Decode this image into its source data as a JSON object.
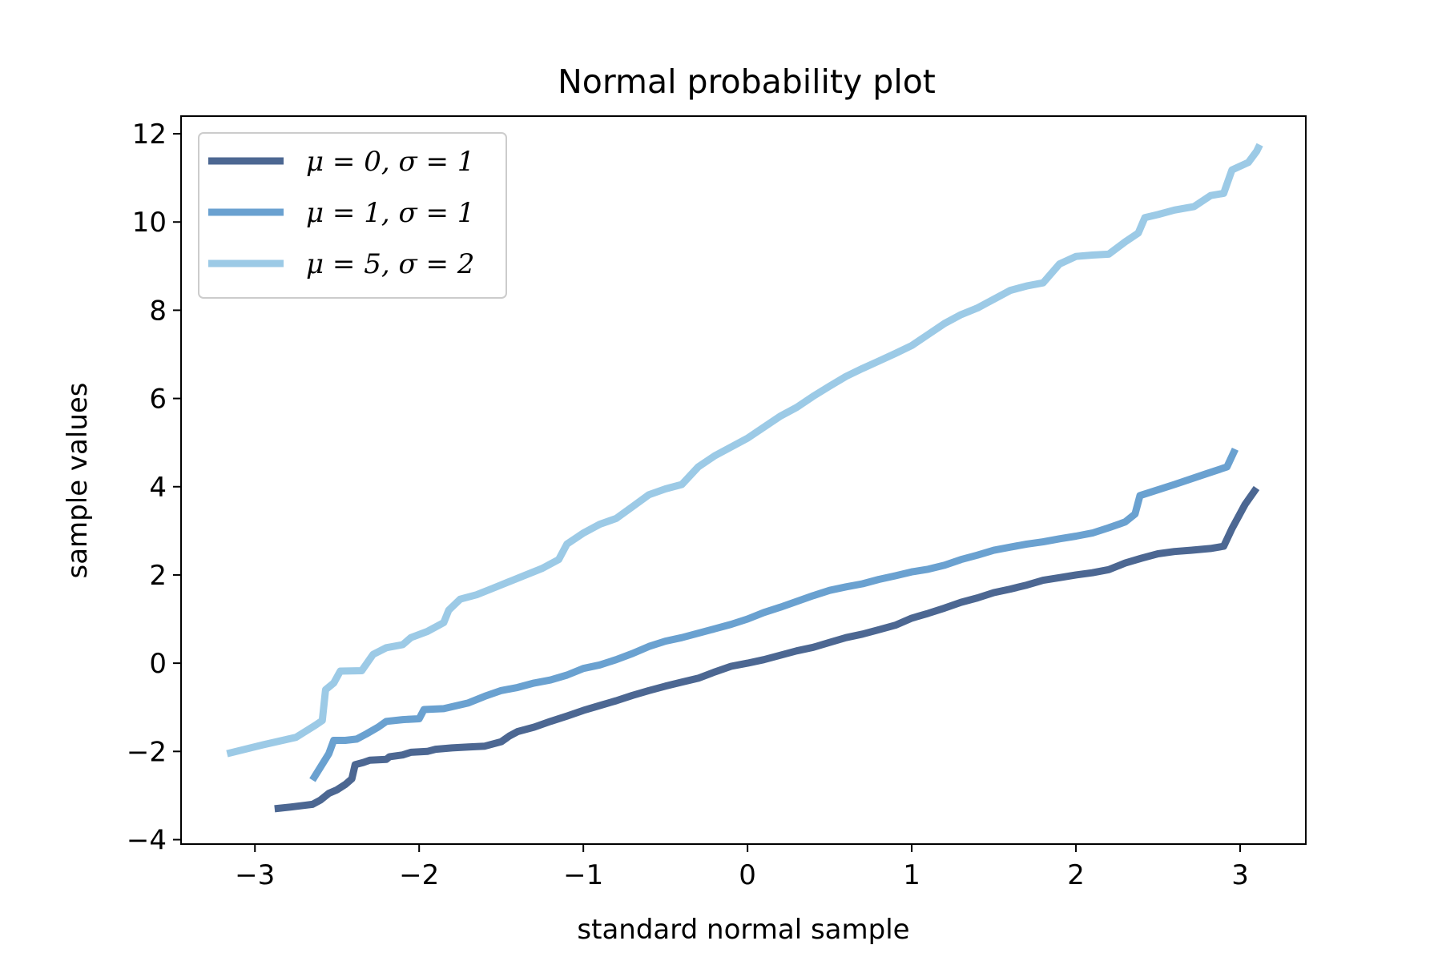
{
  "chart_data": {
    "type": "line",
    "title": "Normal probability plot",
    "xlabel": "standard normal sample",
    "ylabel": "sample values",
    "xlim": [
      -3.45,
      3.4
    ],
    "ylim": [
      -4.1,
      12.4
    ],
    "xticks": [
      -3,
      -2,
      -1,
      0,
      1,
      2,
      3
    ],
    "xtick_labels": [
      "−3",
      "−2",
      "−1",
      "0",
      "1",
      "2",
      "3"
    ],
    "yticks": [
      -4,
      -2,
      0,
      2,
      4,
      6,
      8,
      10,
      12
    ],
    "ytick_labels": [
      "−4",
      "−2",
      "0",
      "2",
      "4",
      "6",
      "8",
      "10",
      "12"
    ],
    "grid": false,
    "legend": "upper-left",
    "series": [
      {
        "name": "μ = 0, σ = 1",
        "color": "#4c6792",
        "points": [
          [
            -2.88,
            -3.3
          ],
          [
            -2.78,
            -3.26
          ],
          [
            -2.65,
            -3.2
          ],
          [
            -2.6,
            -3.1
          ],
          [
            -2.55,
            -2.95
          ],
          [
            -2.5,
            -2.87
          ],
          [
            -2.45,
            -2.75
          ],
          [
            -2.41,
            -2.62
          ],
          [
            -2.39,
            -2.3
          ],
          [
            -2.34,
            -2.25
          ],
          [
            -2.3,
            -2.2
          ],
          [
            -2.2,
            -2.18
          ],
          [
            -2.18,
            -2.12
          ],
          [
            -2.1,
            -2.08
          ],
          [
            -2.05,
            -2.02
          ],
          [
            -1.95,
            -2.0
          ],
          [
            -1.9,
            -1.95
          ],
          [
            -1.8,
            -1.92
          ],
          [
            -1.7,
            -1.9
          ],
          [
            -1.6,
            -1.88
          ],
          [
            -1.5,
            -1.78
          ],
          [
            -1.45,
            -1.65
          ],
          [
            -1.4,
            -1.55
          ],
          [
            -1.3,
            -1.45
          ],
          [
            -1.2,
            -1.32
          ],
          [
            -1.1,
            -1.2
          ],
          [
            -1.0,
            -1.07
          ],
          [
            -0.9,
            -0.96
          ],
          [
            -0.8,
            -0.85
          ],
          [
            -0.7,
            -0.73
          ],
          [
            -0.6,
            -0.62
          ],
          [
            -0.5,
            -0.52
          ],
          [
            -0.4,
            -0.43
          ],
          [
            -0.3,
            -0.34
          ],
          [
            -0.2,
            -0.2
          ],
          [
            -0.1,
            -0.07
          ],
          [
            0.0,
            0.0
          ],
          [
            0.1,
            0.08
          ],
          [
            0.2,
            0.18
          ],
          [
            0.3,
            0.28
          ],
          [
            0.4,
            0.36
          ],
          [
            0.5,
            0.47
          ],
          [
            0.6,
            0.58
          ],
          [
            0.7,
            0.66
          ],
          [
            0.8,
            0.76
          ],
          [
            0.9,
            0.86
          ],
          [
            1.0,
            1.02
          ],
          [
            1.1,
            1.13
          ],
          [
            1.2,
            1.25
          ],
          [
            1.3,
            1.38
          ],
          [
            1.4,
            1.48
          ],
          [
            1.5,
            1.6
          ],
          [
            1.6,
            1.68
          ],
          [
            1.7,
            1.77
          ],
          [
            1.8,
            1.88
          ],
          [
            1.9,
            1.94
          ],
          [
            2.0,
            2.0
          ],
          [
            2.1,
            2.05
          ],
          [
            2.2,
            2.12
          ],
          [
            2.3,
            2.27
          ],
          [
            2.4,
            2.38
          ],
          [
            2.5,
            2.48
          ],
          [
            2.6,
            2.53
          ],
          [
            2.7,
            2.56
          ],
          [
            2.82,
            2.6
          ],
          [
            2.9,
            2.65
          ],
          [
            2.95,
            3.05
          ],
          [
            3.03,
            3.6
          ],
          [
            3.1,
            3.97
          ]
        ]
      },
      {
        "name": "μ = 1, σ = 1",
        "color": "#6aa1d0",
        "points": [
          [
            -2.65,
            -2.65
          ],
          [
            -2.55,
            -2.05
          ],
          [
            -2.52,
            -1.75
          ],
          [
            -2.45,
            -1.75
          ],
          [
            -2.38,
            -1.72
          ],
          [
            -2.32,
            -1.6
          ],
          [
            -2.25,
            -1.45
          ],
          [
            -2.2,
            -1.32
          ],
          [
            -2.1,
            -1.28
          ],
          [
            -2.0,
            -1.26
          ],
          [
            -1.97,
            -1.05
          ],
          [
            -1.85,
            -1.03
          ],
          [
            -1.7,
            -0.9
          ],
          [
            -1.6,
            -0.75
          ],
          [
            -1.5,
            -0.62
          ],
          [
            -1.4,
            -0.55
          ],
          [
            -1.3,
            -0.45
          ],
          [
            -1.2,
            -0.38
          ],
          [
            -1.1,
            -0.27
          ],
          [
            -1.0,
            -0.12
          ],
          [
            -0.9,
            -0.04
          ],
          [
            -0.8,
            0.08
          ],
          [
            -0.7,
            0.22
          ],
          [
            -0.6,
            0.38
          ],
          [
            -0.5,
            0.5
          ],
          [
            -0.4,
            0.58
          ],
          [
            -0.3,
            0.68
          ],
          [
            -0.2,
            0.78
          ],
          [
            -0.1,
            0.88
          ],
          [
            0.0,
            1.0
          ],
          [
            0.1,
            1.15
          ],
          [
            0.2,
            1.27
          ],
          [
            0.3,
            1.4
          ],
          [
            0.4,
            1.53
          ],
          [
            0.5,
            1.65
          ],
          [
            0.6,
            1.73
          ],
          [
            0.7,
            1.8
          ],
          [
            0.8,
            1.9
          ],
          [
            0.9,
            1.98
          ],
          [
            1.0,
            2.07
          ],
          [
            1.1,
            2.13
          ],
          [
            1.2,
            2.22
          ],
          [
            1.3,
            2.35
          ],
          [
            1.4,
            2.45
          ],
          [
            1.5,
            2.56
          ],
          [
            1.6,
            2.63
          ],
          [
            1.7,
            2.7
          ],
          [
            1.8,
            2.75
          ],
          [
            1.9,
            2.82
          ],
          [
            2.0,
            2.88
          ],
          [
            2.1,
            2.95
          ],
          [
            2.2,
            3.07
          ],
          [
            2.3,
            3.2
          ],
          [
            2.36,
            3.38
          ],
          [
            2.39,
            3.8
          ],
          [
            2.6,
            4.05
          ],
          [
            2.8,
            4.3
          ],
          [
            2.92,
            4.45
          ],
          [
            2.97,
            4.85
          ]
        ]
      },
      {
        "name": "μ = 5, σ = 2",
        "color": "#9ccae6",
        "points": [
          [
            -3.17,
            -2.05
          ],
          [
            -2.95,
            -1.85
          ],
          [
            -2.75,
            -1.68
          ],
          [
            -2.63,
            -1.4
          ],
          [
            -2.59,
            -1.3
          ],
          [
            -2.57,
            -0.6
          ],
          [
            -2.52,
            -0.45
          ],
          [
            -2.48,
            -0.18
          ],
          [
            -2.35,
            -0.17
          ],
          [
            -2.28,
            0.2
          ],
          [
            -2.2,
            0.35
          ],
          [
            -2.1,
            0.42
          ],
          [
            -2.05,
            0.58
          ],
          [
            -1.95,
            0.72
          ],
          [
            -1.85,
            0.92
          ],
          [
            -1.82,
            1.2
          ],
          [
            -1.75,
            1.45
          ],
          [
            -1.65,
            1.55
          ],
          [
            -1.55,
            1.7
          ],
          [
            -1.45,
            1.85
          ],
          [
            -1.35,
            2.0
          ],
          [
            -1.25,
            2.15
          ],
          [
            -1.15,
            2.35
          ],
          [
            -1.1,
            2.7
          ],
          [
            -1.0,
            2.95
          ],
          [
            -0.9,
            3.15
          ],
          [
            -0.8,
            3.28
          ],
          [
            -0.7,
            3.55
          ],
          [
            -0.6,
            3.82
          ],
          [
            -0.5,
            3.95
          ],
          [
            -0.4,
            4.05
          ],
          [
            -0.3,
            4.45
          ],
          [
            -0.2,
            4.7
          ],
          [
            -0.1,
            4.9
          ],
          [
            0.0,
            5.1
          ],
          [
            0.1,
            5.35
          ],
          [
            0.2,
            5.6
          ],
          [
            0.3,
            5.8
          ],
          [
            0.4,
            6.05
          ],
          [
            0.5,
            6.28
          ],
          [
            0.6,
            6.5
          ],
          [
            0.7,
            6.68
          ],
          [
            0.8,
            6.85
          ],
          [
            0.9,
            7.02
          ],
          [
            1.0,
            7.2
          ],
          [
            1.1,
            7.45
          ],
          [
            1.2,
            7.7
          ],
          [
            1.3,
            7.9
          ],
          [
            1.4,
            8.05
          ],
          [
            1.5,
            8.25
          ],
          [
            1.6,
            8.45
          ],
          [
            1.7,
            8.55
          ],
          [
            1.8,
            8.62
          ],
          [
            1.9,
            9.05
          ],
          [
            2.0,
            9.22
          ],
          [
            2.1,
            9.25
          ],
          [
            2.2,
            9.27
          ],
          [
            2.3,
            9.55
          ],
          [
            2.38,
            9.75
          ],
          [
            2.42,
            10.1
          ],
          [
            2.5,
            10.17
          ],
          [
            2.6,
            10.27
          ],
          [
            2.72,
            10.35
          ],
          [
            2.82,
            10.6
          ],
          [
            2.9,
            10.65
          ],
          [
            2.95,
            11.18
          ],
          [
            3.05,
            11.35
          ],
          [
            3.1,
            11.6
          ],
          [
            3.12,
            11.75
          ]
        ]
      }
    ]
  }
}
